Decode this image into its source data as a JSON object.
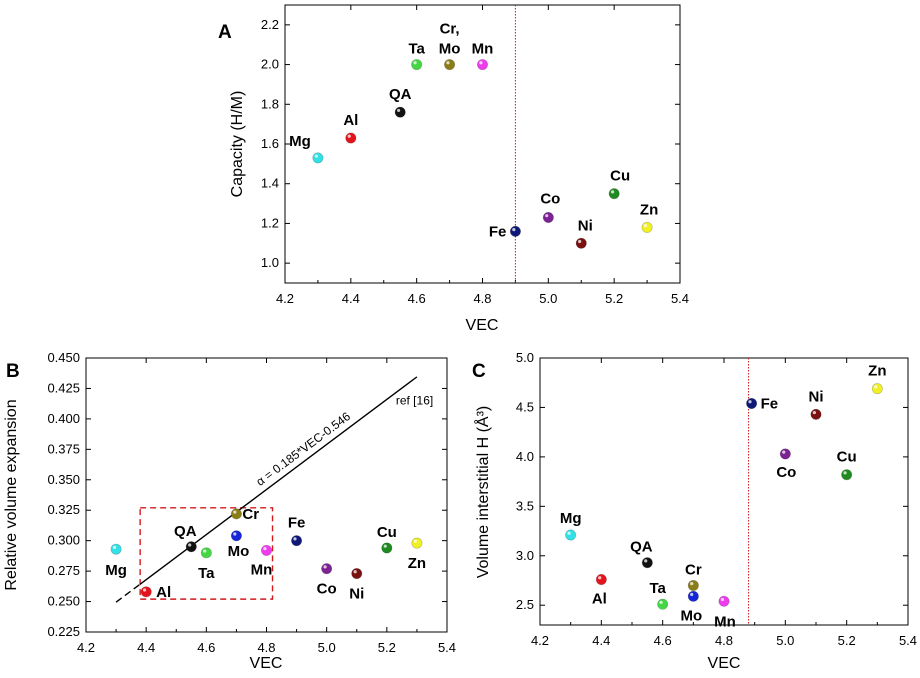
{
  "colors": {
    "Mg": "#33e0e6",
    "Al": "#e3141c",
    "QA": "#111111",
    "Ta": "#45d645",
    "Cr": "#8a7d16",
    "Mo": "#1626d6",
    "Mn": "#ec3cec",
    "Fe": "#101877",
    "Co": "#7c2293",
    "Ni": "#7a1010",
    "Cu": "#1f8a1f",
    "Zn": "#f0f022",
    "refline": "#d11a1a"
  },
  "chart_data": [
    {
      "panel": "A",
      "type": "scatter",
      "xlabel": "VEC",
      "ylabel": "Capacity (H/M)",
      "xlim": [
        4.2,
        5.4
      ],
      "ylim": [
        0.9,
        2.3
      ],
      "xticks": [
        "4.2",
        "4.4",
        "4.6",
        "4.8",
        "5.0",
        "5.2",
        "5.4"
      ],
      "yticks": [
        "1.0",
        "1.2",
        "1.4",
        "1.6",
        "1.8",
        "2.0",
        "2.2"
      ],
      "vline": 4.9,
      "points": [
        {
          "label": "Mg",
          "x": 4.3,
          "y": 1.53
        },
        {
          "label": "Al",
          "x": 4.4,
          "y": 1.63
        },
        {
          "label": "QA",
          "x": 4.55,
          "y": 1.76
        },
        {
          "label": "Ta",
          "x": 4.6,
          "y": 2.0
        },
        {
          "label": "Cr,",
          "label2": "Mo",
          "x": 4.7,
          "y": 2.0
        },
        {
          "label": "Mn",
          "x": 4.8,
          "y": 2.0
        },
        {
          "label": "Fe",
          "x": 4.9,
          "y": 1.16
        },
        {
          "label": "Co",
          "x": 5.0,
          "y": 1.23
        },
        {
          "label": "Ni",
          "x": 5.1,
          "y": 1.1
        },
        {
          "label": "Cu",
          "x": 5.2,
          "y": 1.35
        },
        {
          "label": "Zn",
          "x": 5.3,
          "y": 1.18
        }
      ]
    },
    {
      "panel": "B",
      "type": "scatter",
      "xlabel": "VEC",
      "ylabel": "Relative volume expansion",
      "xlim": [
        4.2,
        5.4
      ],
      "ylim": [
        0.225,
        0.45
      ],
      "xticks": [
        "4.2",
        "4.4",
        "4.6",
        "4.8",
        "5.0",
        "5.2",
        "5.4"
      ],
      "yticks": [
        "0.225",
        "0.250",
        "0.275",
        "0.300",
        "0.325",
        "0.350",
        "0.375",
        "0.400",
        "0.425",
        "0.450"
      ],
      "fit_line": {
        "equation": "α = 0.185*VEC-0.546",
        "reference": "ref [16]",
        "slope": 0.185,
        "intercept": -0.546,
        "x_range": [
          4.3,
          5.3
        ]
      },
      "highlight_box": {
        "x": [
          4.38,
          4.82
        ],
        "y": [
          0.252,
          0.327
        ]
      },
      "points": [
        {
          "label": "Mg",
          "x": 4.3,
          "y": 0.293
        },
        {
          "label": "Al",
          "x": 4.4,
          "y": 0.258
        },
        {
          "label": "QA",
          "x": 4.55,
          "y": 0.295
        },
        {
          "label": "Ta",
          "x": 4.6,
          "y": 0.29
        },
        {
          "label": "Cr",
          "x": 4.7,
          "y": 0.322
        },
        {
          "label": "Mo",
          "x": 4.7,
          "y": 0.304
        },
        {
          "label": "Mn",
          "x": 4.8,
          "y": 0.292
        },
        {
          "label": "Fe",
          "x": 4.9,
          "y": 0.3
        },
        {
          "label": "Co",
          "x": 5.0,
          "y": 0.277
        },
        {
          "label": "Ni",
          "x": 5.1,
          "y": 0.273
        },
        {
          "label": "Cu",
          "x": 5.2,
          "y": 0.294
        },
        {
          "label": "Zn",
          "x": 5.3,
          "y": 0.298
        }
      ]
    },
    {
      "panel": "C",
      "type": "scatter",
      "xlabel": "VEC",
      "ylabel": "Volume interstitial H (Å³)",
      "xlim": [
        4.2,
        5.4
      ],
      "ylim": [
        2.3,
        5.0
      ],
      "xticks": [
        "4.2",
        "4.4",
        "4.6",
        "4.8",
        "5.0",
        "5.2",
        "5.4"
      ],
      "yticks": [
        "2.5",
        "3.0",
        "3.5",
        "4.0",
        "4.5",
        "5.0"
      ],
      "vline": 4.88,
      "points": [
        {
          "label": "Mg",
          "x": 4.3,
          "y": 3.21
        },
        {
          "label": "Al",
          "x": 4.4,
          "y": 2.76
        },
        {
          "label": "QA",
          "x": 4.55,
          "y": 2.93
        },
        {
          "label": "Ta",
          "x": 4.6,
          "y": 2.51
        },
        {
          "label": "Cr",
          "x": 4.7,
          "y": 2.7
        },
        {
          "label": "Mo",
          "x": 4.7,
          "y": 2.59
        },
        {
          "label": "Mn",
          "x": 4.8,
          "y": 2.54
        },
        {
          "label": "Fe",
          "x": 4.89,
          "y": 4.54
        },
        {
          "label": "Co",
          "x": 5.0,
          "y": 4.03
        },
        {
          "label": "Ni",
          "x": 5.1,
          "y": 4.43
        },
        {
          "label": "Cu",
          "x": 5.2,
          "y": 3.82
        },
        {
          "label": "Zn",
          "x": 5.3,
          "y": 4.69
        }
      ]
    }
  ]
}
